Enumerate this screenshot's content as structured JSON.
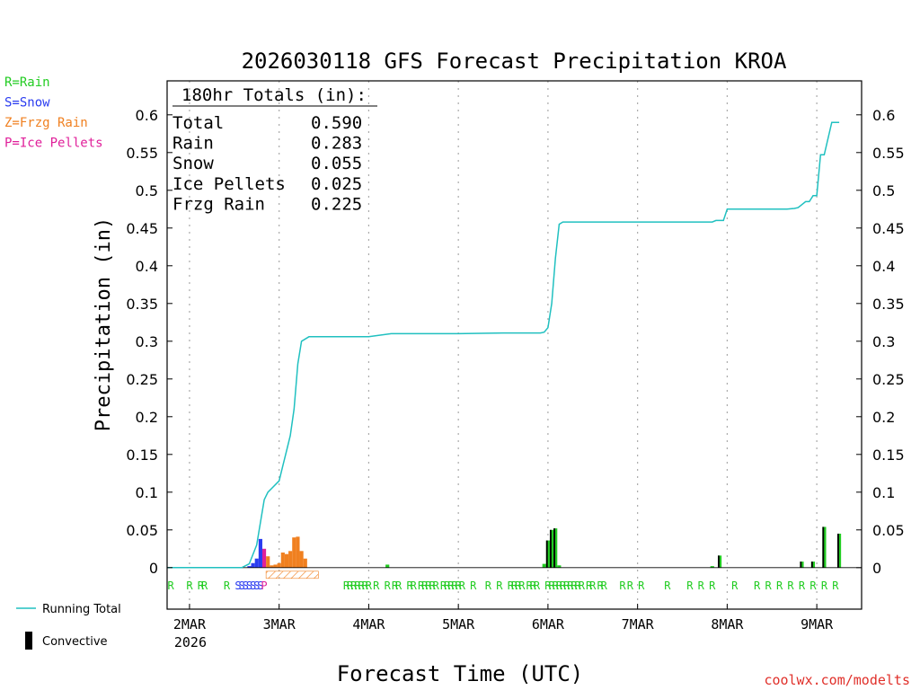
{
  "chart_data": {
    "type": "bar",
    "title": "2026030118 GFS Forecast Precipitation KROA",
    "xlabel": "Forecast Time (UTC)",
    "ylabel": "Precipitation (in)",
    "ylim": [
      -0.055,
      0.645
    ],
    "y_ticks": [
      0,
      0.05,
      0.1,
      0.15,
      0.2,
      0.25,
      0.3,
      0.35,
      0.4,
      0.45,
      0.5,
      0.55,
      0.6
    ],
    "y_tick_labels": [
      "0",
      "0.05",
      "0.1",
      "0.15",
      "0.2",
      "0.25",
      "0.3",
      "0.35",
      "0.4",
      "0.45",
      "0.5",
      "0.55",
      "0.6"
    ],
    "xlim_hours": [
      -6,
      180
    ],
    "x_ticks": [
      {
        "hour": 0,
        "label": "2MAR",
        "sublabel": "2026"
      },
      {
        "hour": 24,
        "label": "3MAR"
      },
      {
        "hour": 48,
        "label": "4MAR"
      },
      {
        "hour": 72,
        "label": "5MAR"
      },
      {
        "hour": 96,
        "label": "6MAR"
      },
      {
        "hour": 120,
        "label": "7MAR"
      },
      {
        "hour": 144,
        "label": "8MAR"
      },
      {
        "hour": 168,
        "label": "9MAR"
      }
    ],
    "legend_types": [
      {
        "label": "R=Rain",
        "color": "#22cc22"
      },
      {
        "label": "S=Snow",
        "color": "#2a3cf0"
      },
      {
        "label": "Z=Frzg Rain",
        "color": "#f08020"
      },
      {
        "label": "P=Ice Pellets",
        "color": "#e0209a"
      }
    ],
    "legend_bottom": {
      "running_total": "Running Total",
      "convective": "Convective"
    },
    "totals": {
      "header": "180hr Totals (in):",
      "rows": [
        {
          "label": "Total",
          "value": "0.590"
        },
        {
          "label": "Rain",
          "value": "0.283"
        },
        {
          "label": "Snow",
          "value": "0.055"
        },
        {
          "label": "Ice Pellets",
          "value": "0.025"
        },
        {
          "label": "Frzg Rain",
          "value": "0.225"
        }
      ]
    },
    "running_total": {
      "hours": [
        -6,
        14,
        16,
        18,
        19,
        20,
        21,
        22,
        24,
        25,
        26,
        27,
        28,
        29,
        30,
        32,
        48,
        54,
        66,
        72,
        84,
        94,
        95,
        96,
        97,
        98,
        99,
        100,
        140,
        141,
        143,
        144,
        160,
        162,
        163,
        165,
        166,
        167,
        168,
        169,
        170,
        172,
        174
      ],
      "values": [
        0,
        0,
        0.005,
        0.03,
        0.06,
        0.09,
        0.1,
        0.105,
        0.115,
        0.135,
        0.155,
        0.175,
        0.21,
        0.27,
        0.3,
        0.306,
        0.306,
        0.31,
        0.31,
        0.31,
        0.311,
        0.311,
        0.312,
        0.318,
        0.35,
        0.41,
        0.455,
        0.458,
        0.458,
        0.46,
        0.46,
        0.475,
        0.475,
        0.476,
        0.477,
        0.485,
        0.485,
        0.493,
        0.493,
        0.547,
        0.547,
        0.59,
        0.59
      ]
    },
    "bars": [
      {
        "hour": 16,
        "value": 0.002,
        "type": "snow"
      },
      {
        "hour": 17,
        "value": 0.006,
        "type": "snow"
      },
      {
        "hour": 18,
        "value": 0.012,
        "type": "snow"
      },
      {
        "hour": 19,
        "value": 0.038,
        "type": "snow"
      },
      {
        "hour": 20,
        "value": 0.025,
        "type": "ice"
      },
      {
        "hour": 21,
        "value": 0.015,
        "type": "frzg"
      },
      {
        "hour": 22,
        "value": 0.003,
        "type": "frzg"
      },
      {
        "hour": 23,
        "value": 0.004,
        "type": "frzg"
      },
      {
        "hour": 24,
        "value": 0.006,
        "type": "frzg"
      },
      {
        "hour": 25,
        "value": 0.02,
        "type": "frzg"
      },
      {
        "hour": 26,
        "value": 0.018,
        "type": "frzg"
      },
      {
        "hour": 27,
        "value": 0.022,
        "type": "frzg"
      },
      {
        "hour": 28,
        "value": 0.04,
        "type": "frzg"
      },
      {
        "hour": 29,
        "value": 0.041,
        "type": "frzg"
      },
      {
        "hour": 30,
        "value": 0.022,
        "type": "frzg"
      },
      {
        "hour": 31,
        "value": 0.012,
        "type": "frzg"
      },
      {
        "hour": 53,
        "value": 0.004,
        "type": "rain"
      },
      {
        "hour": 95,
        "value": 0.005,
        "type": "rain"
      },
      {
        "hour": 96,
        "value": 0.036,
        "type": "rain"
      },
      {
        "hour": 97,
        "value": 0.05,
        "type": "rain"
      },
      {
        "hour": 98,
        "value": 0.052,
        "type": "rain"
      },
      {
        "hour": 99,
        "value": 0.003,
        "type": "rain"
      },
      {
        "hour": 140,
        "value": 0.002,
        "type": "rain"
      },
      {
        "hour": 142,
        "value": 0.016,
        "type": "rain"
      },
      {
        "hour": 164,
        "value": 0.008,
        "type": "rain"
      },
      {
        "hour": 167,
        "value": 0.008,
        "type": "rain"
      },
      {
        "hour": 170,
        "value": 0.054,
        "type": "rain"
      },
      {
        "hour": 174,
        "value": 0.045,
        "type": "rain"
      }
    ],
    "convective": [
      {
        "hour": 96,
        "value": 0.036
      },
      {
        "hour": 97,
        "value": 0.05
      },
      {
        "hour": 98,
        "value": 0.052
      },
      {
        "hour": 142,
        "value": 0.016
      },
      {
        "hour": 164,
        "value": 0.008
      },
      {
        "hour": 167,
        "value": 0.008
      },
      {
        "hour": 170,
        "value": 0.054
      },
      {
        "hour": 174,
        "value": 0.045
      }
    ],
    "type_markers": [
      {
        "hour": -5,
        "code": "R"
      },
      {
        "hour": 0,
        "code": "R"
      },
      {
        "hour": 3,
        "code": "R"
      },
      {
        "hour": 4,
        "code": "R"
      },
      {
        "hour": 10,
        "code": "R"
      },
      {
        "hour": 13,
        "code": "S"
      },
      {
        "hour": 14,
        "code": "S"
      },
      {
        "hour": 15,
        "code": "S"
      },
      {
        "hour": 16,
        "code": "S"
      },
      {
        "hour": 17,
        "code": "S"
      },
      {
        "hour": 18,
        "code": "S"
      },
      {
        "hour": 19,
        "code": "S"
      },
      {
        "hour": 20,
        "code": "P"
      },
      {
        "hour": 42,
        "code": "R"
      },
      {
        "hour": 43,
        "code": "R"
      },
      {
        "hour": 44,
        "code": "R"
      },
      {
        "hour": 45,
        "code": "R"
      },
      {
        "hour": 46,
        "code": "R"
      },
      {
        "hour": 47,
        "code": "R"
      },
      {
        "hour": 48,
        "code": "R"
      },
      {
        "hour": 50,
        "code": "R"
      },
      {
        "hour": 53,
        "code": "R"
      },
      {
        "hour": 55,
        "code": "R"
      },
      {
        "hour": 56,
        "code": "R"
      },
      {
        "hour": 59,
        "code": "R"
      },
      {
        "hour": 60,
        "code": "R"
      },
      {
        "hour": 62,
        "code": "R"
      },
      {
        "hour": 63,
        "code": "R"
      },
      {
        "hour": 64,
        "code": "R"
      },
      {
        "hour": 65,
        "code": "R"
      },
      {
        "hour": 66,
        "code": "R"
      },
      {
        "hour": 68,
        "code": "R"
      },
      {
        "hour": 69,
        "code": "R"
      },
      {
        "hour": 70,
        "code": "R"
      },
      {
        "hour": 71,
        "code": "R"
      },
      {
        "hour": 72,
        "code": "R"
      },
      {
        "hour": 73,
        "code": "R"
      },
      {
        "hour": 76,
        "code": "R"
      },
      {
        "hour": 80,
        "code": "R"
      },
      {
        "hour": 83,
        "code": "R"
      },
      {
        "hour": 86,
        "code": "R"
      },
      {
        "hour": 87,
        "code": "R"
      },
      {
        "hour": 88,
        "code": "R"
      },
      {
        "hour": 89,
        "code": "R"
      },
      {
        "hour": 91,
        "code": "R"
      },
      {
        "hour": 92,
        "code": "R"
      },
      {
        "hour": 93,
        "code": "R"
      },
      {
        "hour": 96,
        "code": "R"
      },
      {
        "hour": 97,
        "code": "R"
      },
      {
        "hour": 98,
        "code": "R"
      },
      {
        "hour": 99,
        "code": "R"
      },
      {
        "hour": 100,
        "code": "R"
      },
      {
        "hour": 101,
        "code": "R"
      },
      {
        "hour": 102,
        "code": "R"
      },
      {
        "hour": 103,
        "code": "R"
      },
      {
        "hour": 104,
        "code": "R"
      },
      {
        "hour": 105,
        "code": "R"
      },
      {
        "hour": 107,
        "code": "R"
      },
      {
        "hour": 108,
        "code": "R"
      },
      {
        "hour": 110,
        "code": "R"
      },
      {
        "hour": 111,
        "code": "R"
      },
      {
        "hour": 116,
        "code": "R"
      },
      {
        "hour": 118,
        "code": "R"
      },
      {
        "hour": 121,
        "code": "R"
      },
      {
        "hour": 128,
        "code": "R"
      },
      {
        "hour": 134,
        "code": "R"
      },
      {
        "hour": 137,
        "code": "R"
      },
      {
        "hour": 140,
        "code": "R"
      },
      {
        "hour": 146,
        "code": "R"
      },
      {
        "hour": 152,
        "code": "R"
      },
      {
        "hour": 155,
        "code": "R"
      },
      {
        "hour": 158,
        "code": "R"
      },
      {
        "hour": 161,
        "code": "R"
      },
      {
        "hour": 164,
        "code": "R"
      },
      {
        "hour": 167,
        "code": "R"
      },
      {
        "hour": 170,
        "code": "R"
      },
      {
        "hour": 173,
        "code": "R"
      }
    ],
    "hatch_range_hours": [
      21,
      35
    ],
    "watermark": "coolwx.com/modelts",
    "colors": {
      "rain": "#22cc22",
      "snow": "#2a3cf0",
      "frzg": "#f08020",
      "ice": "#e0209a",
      "total_line": "#20c0c0",
      "convective": "#000000",
      "grid": "#aaaaaa",
      "watermark": "#e0302a"
    }
  }
}
